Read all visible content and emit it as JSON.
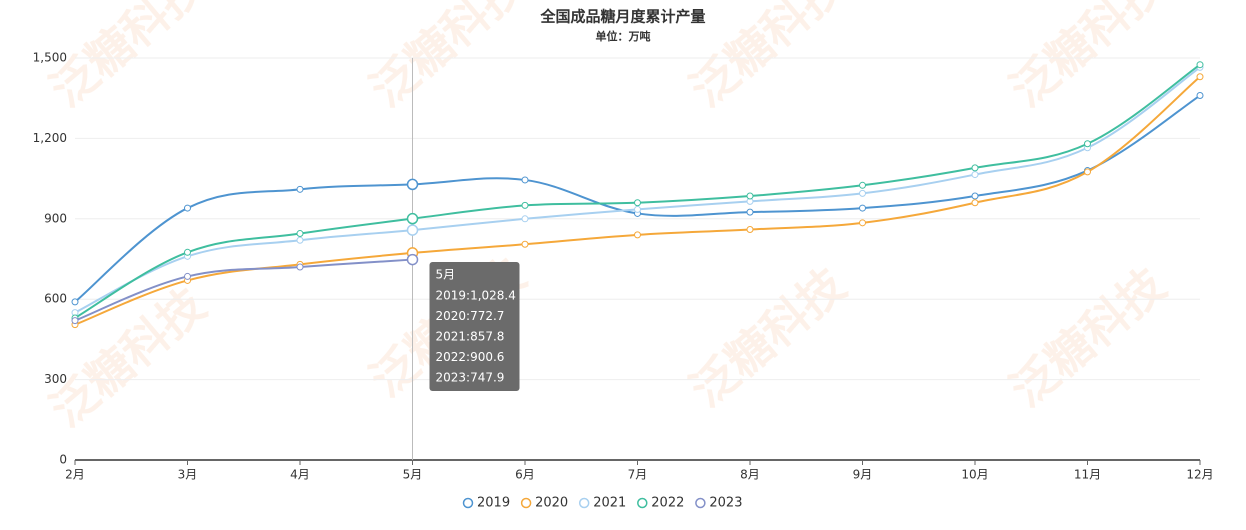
{
  "chart_data": {
    "type": "line",
    "title": "全国成品糖月度累计产量",
    "subtitle": "单位：万吨",
    "watermark": "泛糖科技",
    "categories": [
      "2月",
      "3月",
      "4月",
      "5月",
      "6月",
      "7月",
      "8月",
      "9月",
      "10月",
      "11月",
      "12月"
    ],
    "series": [
      {
        "name": "2019",
        "color": "#4e94d0",
        "values": [
          590,
          940,
          1010,
          1028.4,
          1045,
          920,
          925,
          940,
          985,
          1080,
          1360
        ]
      },
      {
        "name": "2020",
        "color": "#f5a83a",
        "values": [
          505,
          670,
          730,
          772.7,
          805,
          840,
          860,
          885,
          960,
          1075,
          1430
        ]
      },
      {
        "name": "2021",
        "color": "#a8d0f0",
        "values": [
          550,
          760,
          820,
          857.8,
          900,
          935,
          965,
          995,
          1065,
          1165,
          1465
        ]
      },
      {
        "name": "2022",
        "color": "#3fbe9f",
        "values": [
          530,
          775,
          845,
          900.6,
          950,
          960,
          985,
          1025,
          1090,
          1180,
          1475
        ]
      },
      {
        "name": "2023",
        "color": "#8390c8",
        "values": [
          520,
          685,
          720,
          747.9,
          null,
          null,
          null,
          null,
          null,
          null,
          null
        ]
      }
    ],
    "ylim": [
      0,
      1500
    ],
    "yticks": [
      0,
      300,
      600,
      900,
      {
        "value": 1200,
        "label": "1,200"
      },
      {
        "value": 1500,
        "label": "1,500"
      }
    ],
    "grid": true,
    "legend": "bottom",
    "tooltip": {
      "title": "5月",
      "lines": [
        "2019:1,028.4",
        "2020:772.7",
        "2021:857.8",
        "2022:900.6",
        "2023:747.9"
      ]
    }
  }
}
